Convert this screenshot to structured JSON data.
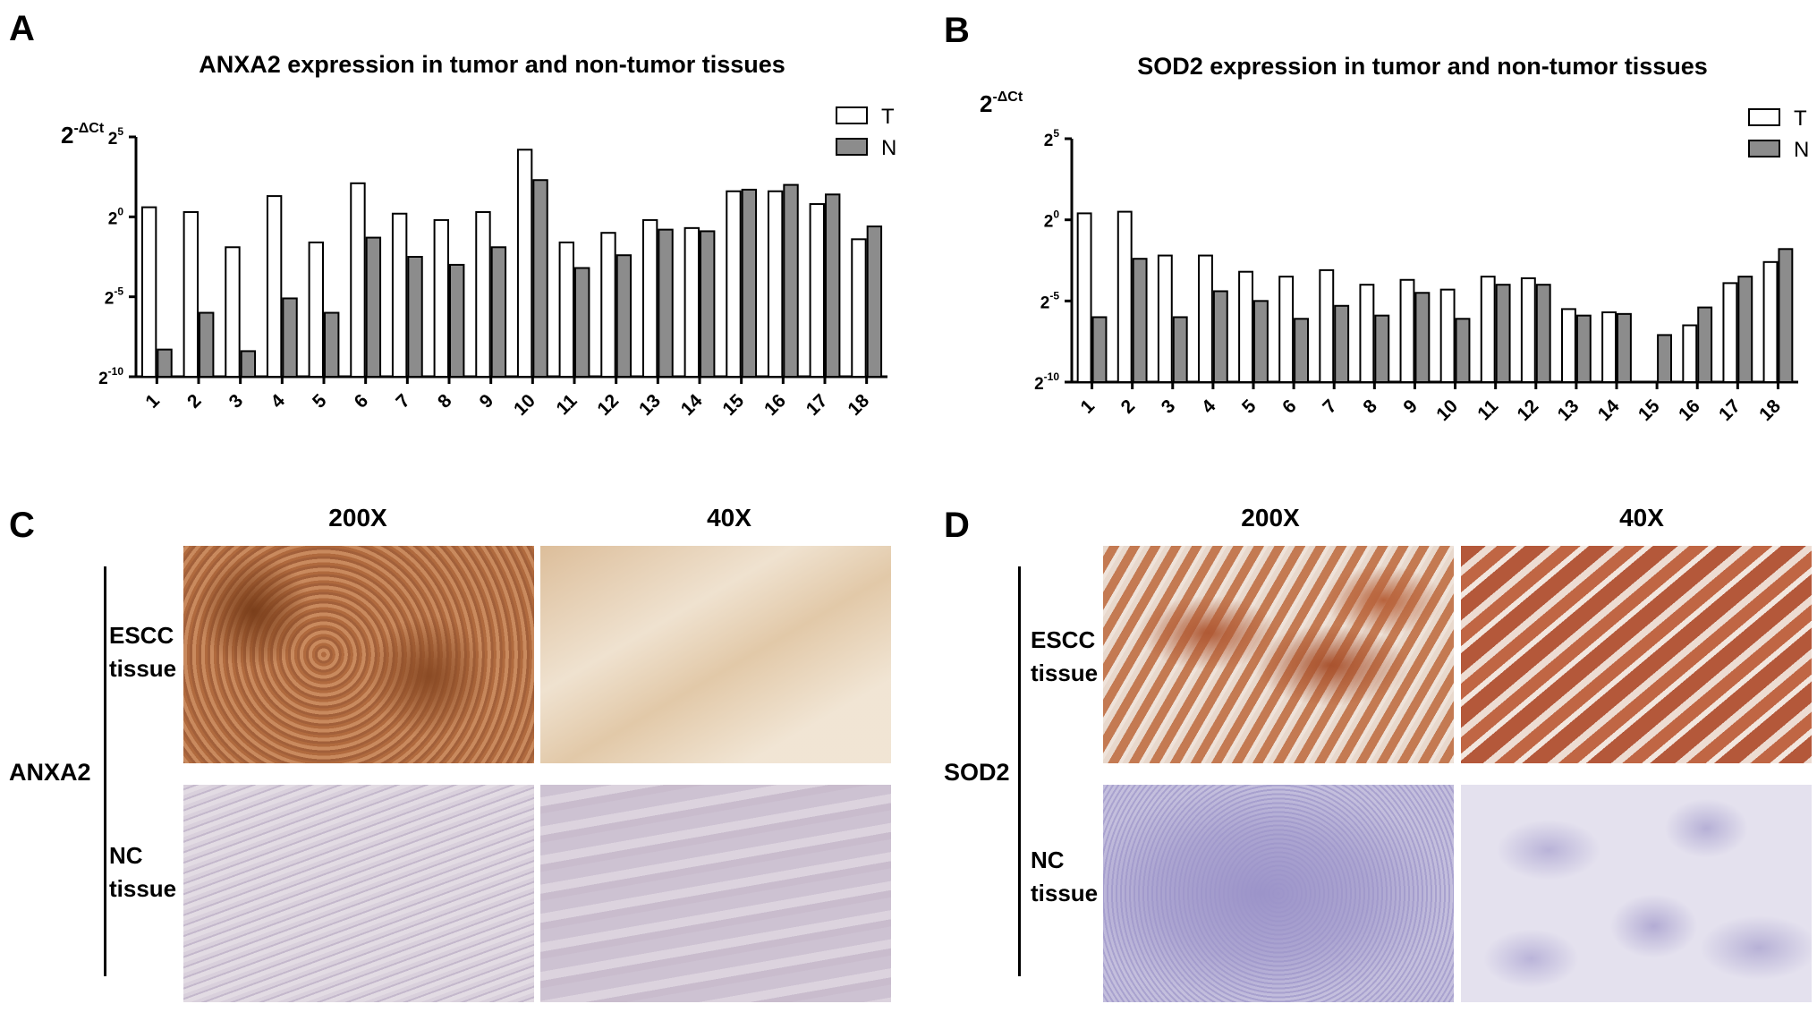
{
  "panels": {
    "A": {
      "letter": "A",
      "chart_data": {
        "type": "bar",
        "title": "ANXA2 expression in tumor and non-tumor tissues",
        "ylabel_base": "2",
        "ylabel_exp": "-ΔCt",
        "yscale": "log2",
        "ylim": [
          -10,
          5
        ],
        "yticks": [
          {
            "value": 5,
            "base": "2",
            "exp": "5"
          },
          {
            "value": 0,
            "base": "2",
            "exp": "0"
          },
          {
            "value": -5,
            "base": "2",
            "exp": "-5"
          },
          {
            "value": -10,
            "base": "2",
            "exp": "-10"
          }
        ],
        "categories": [
          "1",
          "2",
          "3",
          "4",
          "5",
          "6",
          "7",
          "8",
          "9",
          "10",
          "11",
          "12",
          "13",
          "14",
          "15",
          "16",
          "17",
          "18"
        ],
        "series": [
          {
            "name": "T",
            "color": "#ffffff",
            "values": [
              0.6,
              0.3,
              -1.9,
              1.3,
              -1.6,
              2.1,
              0.2,
              -0.2,
              0.3,
              4.2,
              -1.6,
              -1.0,
              -0.2,
              -0.7,
              1.6,
              1.6,
              0.8,
              -1.4
            ]
          },
          {
            "name": "N",
            "color": "#8c8c8c",
            "values": [
              -8.3,
              -6.0,
              -8.4,
              -5.1,
              -6.0,
              -1.3,
              -2.5,
              -3.0,
              -1.9,
              2.3,
              -3.2,
              -2.4,
              -0.8,
              -0.9,
              1.7,
              2.0,
              1.4,
              -0.6
            ]
          }
        ],
        "legend_position": "top-right",
        "grid": false
      }
    },
    "B": {
      "letter": "B",
      "chart_data": {
        "type": "bar",
        "title": "SOD2 expression in tumor and non-tumor tissues",
        "ylabel_base": "2",
        "ylabel_exp": "-ΔCt",
        "yscale": "log2",
        "ylim": [
          -10,
          5
        ],
        "yticks": [
          {
            "value": 5,
            "base": "2",
            "exp": "5"
          },
          {
            "value": 0,
            "base": "2",
            "exp": "0"
          },
          {
            "value": -5,
            "base": "2",
            "exp": "-5"
          },
          {
            "value": -10,
            "base": "2",
            "exp": "-10"
          }
        ],
        "categories": [
          "1",
          "2",
          "3",
          "4",
          "5",
          "6",
          "7",
          "8",
          "9",
          "10",
          "11",
          "12",
          "13",
          "14",
          "15",
          "16",
          "17",
          "18"
        ],
        "series": [
          {
            "name": "T",
            "color": "#ffffff",
            "values": [
              0.4,
              0.5,
              -2.2,
              -2.2,
              -3.2,
              -3.5,
              -3.1,
              -4.0,
              -3.7,
              -4.3,
              -3.5,
              -3.6,
              -5.5,
              -5.7,
              -10.0,
              -6.5,
              -3.9,
              -2.6
            ]
          },
          {
            "name": "N",
            "color": "#8c8c8c",
            "values": [
              -6.0,
              -2.4,
              -6.0,
              -4.4,
              -5.0,
              -6.1,
              -5.3,
              -5.9,
              -4.5,
              -6.1,
              -4.0,
              -4.0,
              -5.9,
              -5.8,
              -7.1,
              -5.4,
              -3.5,
              -1.8
            ]
          }
        ],
        "legend_position": "top-right",
        "grid": false
      }
    },
    "C": {
      "letter": "C",
      "marker": "ANXA2",
      "columns": [
        "200X",
        "40X"
      ],
      "rows": [
        {
          "line1": "ESCC",
          "line2": "tissue"
        },
        {
          "line1": "NC",
          "line2": "tissue"
        }
      ]
    },
    "D": {
      "letter": "D",
      "marker": "SOD2",
      "columns": [
        "200X",
        "40X"
      ],
      "rows": [
        {
          "line1": "ESCC",
          "line2": "tissue"
        },
        {
          "line1": "NC",
          "line2": "tissue"
        }
      ]
    }
  }
}
